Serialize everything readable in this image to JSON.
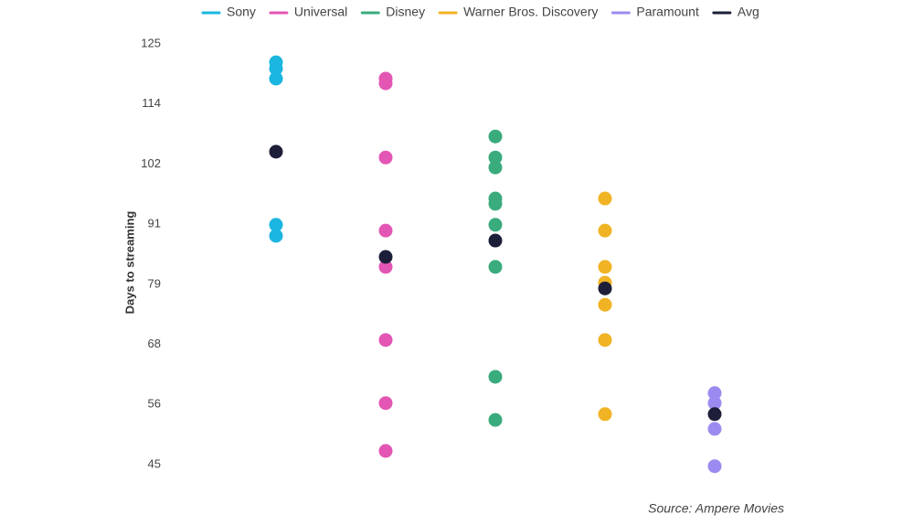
{
  "chart_data": {
    "type": "strip",
    "y_label": "Days to streaming",
    "source": "Source: Ampere Movies",
    "legend": "top",
    "ylim": [
      45,
      125
    ],
    "yticks": [
      45,
      {
        "value": 56.43,
        "label": "56"
      },
      {
        "value": 67.86,
        "label": "68"
      },
      {
        "value": 79.29,
        "label": "79"
      },
      {
        "value": 90.71,
        "label": "91"
      },
      {
        "value": 102.14,
        "label": "102"
      },
      {
        "value": 113.57,
        "label": "114"
      },
      125
    ],
    "series": [
      {
        "name": "Sony",
        "color": "#1bb6e0",
        "values": [
          121.5,
          120.3,
          118.4,
          90.6,
          88.5
        ]
      },
      {
        "name": "Universal",
        "color": "#e356b3",
        "values": [
          118.4,
          117.5,
          103.4,
          89.5,
          82.6,
          68.7,
          56.7,
          47.6
        ]
      },
      {
        "name": "Disney",
        "color": "#3aab7c",
        "values": [
          107.4,
          103.4,
          101.5,
          95.6,
          94.6,
          90.6,
          82.6,
          61.7,
          53.5
        ]
      },
      {
        "name": "Warner Bros. Discovery",
        "color": "#f0b323",
        "values": [
          95.6,
          89.5,
          82.6,
          79.6,
          75.4,
          68.7,
          54.6
        ]
      },
      {
        "name": "Paramount",
        "color": "#9b8bf0",
        "values": [
          58.6,
          56.7,
          51.8,
          44.7
        ]
      },
      {
        "name": "Avg",
        "color": "#1d1f3a",
        "values": [
          104.5,
          84.5,
          87.6,
          78.5,
          54.6
        ]
      }
    ]
  }
}
